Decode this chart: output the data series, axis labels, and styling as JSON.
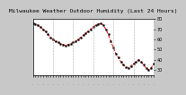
{
  "title": "Milwaukee Weather Outdoor Humidity (Last 24 Hours)",
  "x_values": [
    0,
    1,
    2,
    3,
    4,
    5,
    6,
    7,
    8,
    9,
    10,
    11,
    12,
    13,
    14,
    15,
    16,
    17,
    18,
    19,
    20,
    21,
    22,
    23,
    24,
    25,
    26,
    27,
    28,
    29,
    30,
    31,
    32,
    33,
    34,
    35,
    36,
    37,
    38,
    39,
    40,
    41,
    42,
    43,
    44,
    45,
    46,
    47,
    48
  ],
  "y_values": [
    76,
    75,
    74,
    72,
    70,
    68,
    65,
    62,
    60,
    58,
    57,
    56,
    55,
    54,
    55,
    56,
    57,
    58,
    60,
    62,
    64,
    66,
    68,
    70,
    72,
    74,
    75,
    76,
    74,
    70,
    65,
    58,
    52,
    46,
    42,
    38,
    35,
    33,
    32,
    34,
    36,
    38,
    40,
    38,
    35,
    32,
    30,
    32,
    36
  ],
  "ylim": [
    25,
    80
  ],
  "xlim": [
    0,
    48
  ],
  "line_color": "#ff0000",
  "marker_color": "#000000",
  "bg_color": "#ffffff",
  "outer_bg": "#c8c8c8",
  "grid_color": "#999999",
  "tick_label_fontsize": 3.5,
  "title_fontsize": 4.5,
  "yticks": [
    30,
    40,
    50,
    60,
    70,
    80
  ],
  "ytick_labels": [
    "30",
    "40",
    "50",
    "60",
    "70",
    "80"
  ],
  "vgrid_positions": [
    8,
    16,
    24,
    32,
    40,
    48
  ],
  "num_xticks": 49
}
